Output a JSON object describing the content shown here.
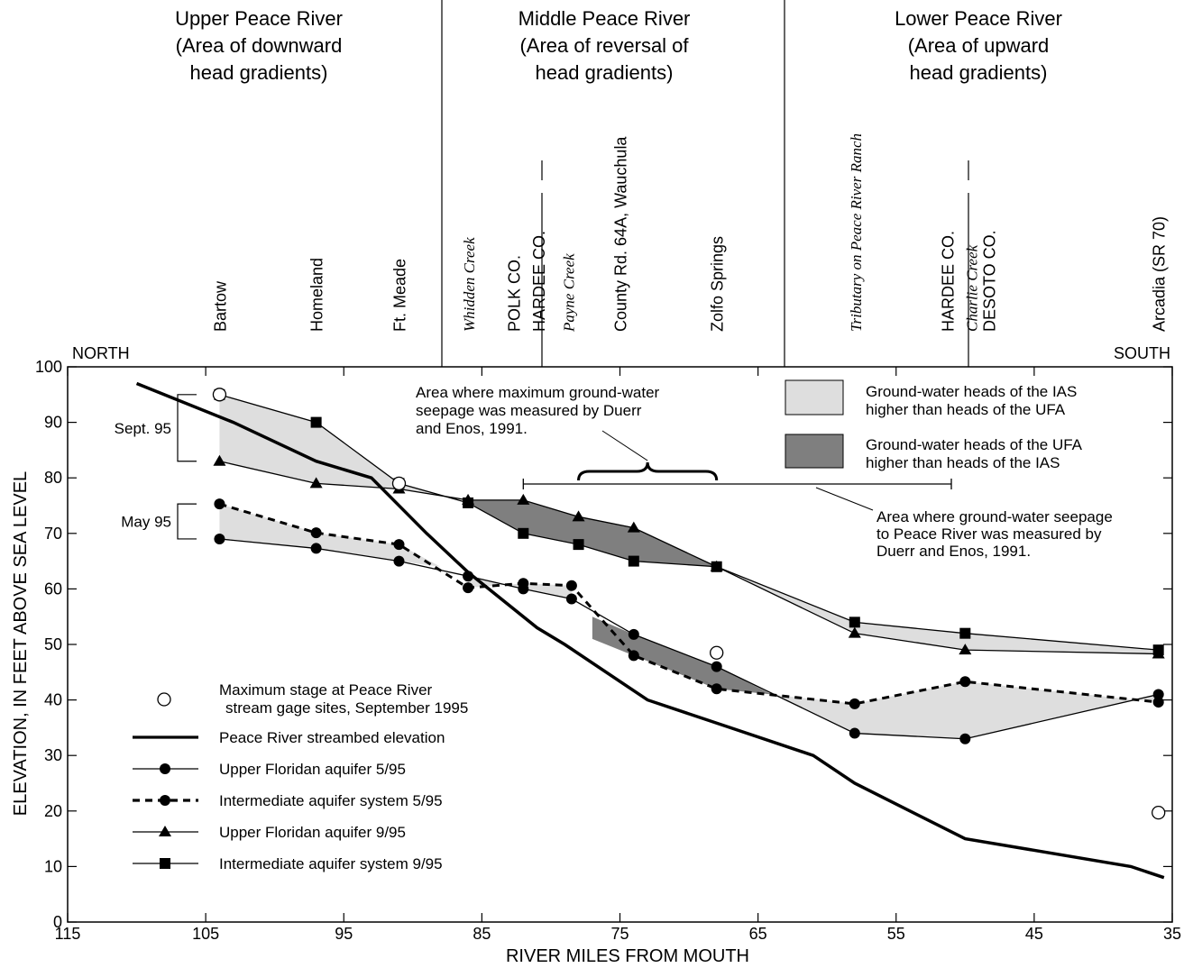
{
  "regions": [
    {
      "name": "upper",
      "lines": [
        "Upper Peace River",
        "(Area of downward",
        "head gradients)"
      ]
    },
    {
      "name": "middle",
      "lines": [
        "Middle Peace River",
        "(Area of reversal of",
        "head gradients)"
      ]
    },
    {
      "name": "lower",
      "lines": [
        "Lower Peace River",
        "(Area of upward",
        "head gradients)"
      ]
    }
  ],
  "directions": {
    "north": "NORTH",
    "south": "SOUTH"
  },
  "site_labels": [
    {
      "text": "Bartow",
      "mile": 104,
      "italic": false
    },
    {
      "text": "Homeland",
      "mile": 97,
      "italic": false
    },
    {
      "text": "Ft. Meade",
      "mile": 91,
      "italic": false
    },
    {
      "text": "Whidden Creek",
      "mile": 86,
      "italic": true
    },
    {
      "text": "POLK CO.",
      "mile": 82.7,
      "italic": false
    },
    {
      "text": "HARDEE CO.",
      "mile": 80.9,
      "italic": false
    },
    {
      "text": "Payne Creek",
      "mile": 78.8,
      "italic": true
    },
    {
      "text": "County Rd. 64A, Wauchula",
      "mile": 75,
      "italic": false
    },
    {
      "text": "Zolfo Springs",
      "mile": 68,
      "italic": false
    },
    {
      "text": "Tributary on Peace River Ranch",
      "mile": 58,
      "italic": true
    },
    {
      "text": "HARDEE CO.",
      "mile": 51.3,
      "italic": false
    },
    {
      "text": "Charlie Creek",
      "mile": 49.6,
      "italic": true
    },
    {
      "text": "DESOTO CO.",
      "mile": 48.3,
      "italic": false
    },
    {
      "text": "Arcadia (SR 70)",
      "mile": 36,
      "italic": false
    }
  ],
  "chart_data": {
    "type": "line",
    "xlabel": "RIVER MILES FROM MOUTH",
    "ylabel": "ELEVATION, IN FEET ABOVE SEA LEVEL",
    "xlim": [
      115,
      35
    ],
    "ylim": [
      0,
      100
    ],
    "xticks": [
      115,
      105,
      95,
      85,
      75,
      65,
      55,
      45,
      35
    ],
    "yticks": [
      0,
      10,
      20,
      30,
      40,
      50,
      60,
      70,
      80,
      90,
      100
    ],
    "series": [
      {
        "name": "Peace River streambed elevation",
        "style": "thick",
        "x": [
          110,
          103,
          97,
          93,
          89,
          86,
          81,
          79,
          73,
          67,
          61,
          58,
          50,
          38,
          35.6
        ],
        "y": [
          97,
          90,
          83,
          80,
          70,
          63,
          53,
          50,
          40,
          35,
          30,
          25,
          15,
          10,
          8
        ]
      },
      {
        "name": "Upper Floridan aquifer 5/95",
        "style": "circle-solid",
        "x": [
          104,
          97,
          91,
          86,
          82,
          78.5,
          74,
          68,
          58,
          50,
          36
        ],
        "y": [
          69,
          67.3,
          65,
          62.3,
          60,
          58.2,
          51.8,
          46,
          34,
          33,
          41
        ]
      },
      {
        "name": "Intermediate aquifer system 5/95",
        "style": "circle-dashed",
        "x": [
          104,
          97,
          91,
          86,
          82,
          78.5,
          74,
          68,
          58,
          50,
          36
        ],
        "y": [
          75.3,
          70.1,
          68,
          60.2,
          61,
          60.6,
          48,
          42,
          39.3,
          43.3,
          39.6
        ]
      },
      {
        "name": "Upper Floridan aquifer 9/95",
        "style": "triangle",
        "x": [
          104,
          97,
          91,
          86,
          82,
          78,
          74,
          68,
          58,
          50,
          36
        ],
        "y": [
          83,
          79,
          78,
          76,
          76,
          73,
          71,
          64,
          52,
          49,
          48.3
        ]
      },
      {
        "name": "Intermediate aquifer system 9/95",
        "style": "square",
        "x": [
          104,
          97,
          91,
          86,
          82,
          78,
          74,
          68,
          58,
          50,
          36
        ],
        "y": [
          95,
          90,
          79,
          75.5,
          70,
          68,
          65,
          64,
          54,
          52,
          49
        ]
      },
      {
        "name": "Maximum stage at Peace River stream gage sites, September 1995",
        "style": "open-circle",
        "x": [
          104,
          91,
          68,
          36
        ],
        "y": [
          95,
          79,
          48.5,
          19.7
        ]
      }
    ],
    "stage_brackets": [
      {
        "label": "Sept. 95",
        "range": [
          83,
          95
        ]
      },
      {
        "label": "May 95",
        "range": [
          69,
          75.3
        ]
      }
    ],
    "seepage_range_miles": [
      82,
      51
    ],
    "max_seepage_range_miles": [
      78,
      68
    ]
  },
  "legend": {
    "max_stage": [
      "Maximum stage at Peace River",
      "stream gage sites, September 1995"
    ],
    "streambed": "Peace River streambed elevation",
    "ufa_may": "Upper Floridan aquifer 5/95",
    "ias_may": "Intermediate aquifer system 5/95",
    "ufa_sept": "Upper Floridan aquifer 9/95",
    "ias_sept": "Intermediate aquifer system 9/95",
    "light_box": [
      "Ground-water heads of the IAS",
      "higher than heads of the UFA"
    ],
    "dark_box": [
      "Ground-water heads of the UFA",
      "higher than heads of the IAS"
    ]
  },
  "annotations": {
    "max_seepage": [
      "Area where maximum ground-water",
      "seepage was measured by Duerr",
      "and Enos, 1991."
    ],
    "seepage": [
      "Area where ground-water seepage",
      "to Peace River was measured by",
      "Duerr and Enos, 1991."
    ],
    "sept": "Sept. 95",
    "may": "May 95"
  },
  "colors": {
    "light_fill": "#dedede",
    "dark_fill": "#7f7f7f",
    "line": "#000000"
  }
}
